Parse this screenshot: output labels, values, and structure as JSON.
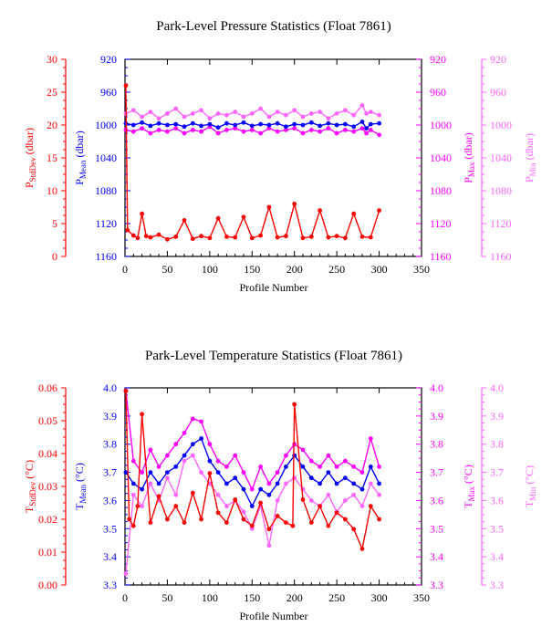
{
  "colors": {
    "stddev": "#ff0000",
    "mean": "#0000ff",
    "max": "#ff00ff",
    "min": "#ff66ff",
    "axis": "#000000"
  },
  "chart_data": [
    {
      "type": "line",
      "title": "Park-Level Pressure Statistics (Float 7861)",
      "xlabel": "Profile Number",
      "xlim": [
        0,
        350
      ],
      "xticks": [
        "0",
        "50",
        "100",
        "150",
        "200",
        "250",
        "300",
        "350"
      ],
      "axes": {
        "stddev": {
          "label_main": "P",
          "label_sub": "StdDev",
          "label_unit": " (dbar)",
          "lim": [
            0,
            30
          ],
          "ticks": [
            "0",
            "5",
            "10",
            "15",
            "20",
            "25",
            "30"
          ],
          "inverted": false
        },
        "mean": {
          "label_main": "P",
          "label_sub": "Mean",
          "label_unit": " (dbar)",
          "lim": [
            1160,
            920
          ],
          "ticks": [
            "920",
            "960",
            "1000",
            "1040",
            "1080",
            "1120",
            "1160"
          ],
          "inverted": true
        },
        "max": {
          "label_main": "P",
          "label_sub": "Max",
          "label_unit": " (dbar)",
          "lim": [
            1160,
            920
          ],
          "ticks": [
            "920",
            "960",
            "1000",
            "1040",
            "1080",
            "1120",
            "1160"
          ],
          "inverted": true
        },
        "min": {
          "label_main": "P",
          "label_sub": "Min",
          "label_unit": " (dbar)",
          "lim": [
            1160,
            920
          ],
          "ticks": [
            "920",
            "960",
            "1000",
            "1040",
            "1080",
            "1120",
            "1160"
          ],
          "inverted": true
        }
      },
      "series": [
        {
          "key": "min",
          "x": [
            1,
            10,
            20,
            30,
            40,
            50,
            60,
            70,
            80,
            90,
            100,
            110,
            120,
            130,
            140,
            150,
            160,
            170,
            180,
            190,
            200,
            210,
            220,
            230,
            240,
            250,
            260,
            270,
            280,
            285,
            290,
            300
          ],
          "values": [
            986,
            982,
            990,
            984,
            992,
            986,
            980,
            990,
            986,
            982,
            992,
            986,
            988,
            984,
            990,
            986,
            980,
            990,
            984,
            988,
            982,
            990,
            986,
            984,
            992,
            986,
            982,
            988,
            976,
            986,
            984,
            988
          ]
        },
        {
          "key": "max",
          "x": [
            1,
            10,
            20,
            30,
            40,
            50,
            60,
            70,
            80,
            90,
            100,
            110,
            120,
            130,
            140,
            150,
            160,
            170,
            180,
            190,
            200,
            210,
            220,
            230,
            240,
            250,
            260,
            270,
            280,
            285,
            290,
            300
          ],
          "values": [
            1006,
            1008,
            1004,
            1010,
            1006,
            1008,
            1004,
            1010,
            1006,
            1008,
            1002,
            1010,
            1006,
            1004,
            1008,
            1006,
            1010,
            1004,
            1008,
            1006,
            1004,
            1010,
            1006,
            1008,
            1004,
            1010,
            1006,
            1008,
            1004,
            1010,
            1006,
            1012
          ]
        },
        {
          "key": "mean",
          "x": [
            1,
            10,
            20,
            30,
            40,
            50,
            60,
            70,
            80,
            90,
            100,
            110,
            120,
            130,
            140,
            150,
            160,
            170,
            180,
            190,
            200,
            210,
            220,
            230,
            240,
            250,
            260,
            270,
            280,
            285,
            290,
            300
          ],
          "values": [
            998,
            1000,
            997,
            1001,
            998,
            1000,
            999,
            1002,
            998,
            1001,
            999,
            1003,
            998,
            1000,
            997,
            1001,
            999,
            1000,
            998,
            1002,
            999,
            1000,
            997,
            1001,
            998,
            1000,
            999,
            1002,
            996,
            1004,
            999,
            998
          ]
        },
        {
          "key": "stddev",
          "x": [
            1,
            3,
            10,
            15,
            20,
            25,
            30,
            40,
            50,
            60,
            70,
            80,
            90,
            100,
            110,
            120,
            130,
            140,
            150,
            160,
            170,
            180,
            190,
            200,
            210,
            220,
            230,
            240,
            250,
            260,
            270,
            280,
            290,
            300
          ],
          "values": [
            26,
            4,
            3.2,
            2.8,
            6.5,
            3.1,
            2.9,
            3.3,
            2.6,
            3.0,
            5.5,
            2.7,
            3.1,
            2.8,
            5.8,
            3.0,
            2.9,
            6.0,
            2.8,
            3.2,
            7.5,
            2.9,
            3.1,
            8.0,
            2.8,
            3.0,
            7.0,
            2.9,
            3.1,
            2.8,
            6.5,
            3.0,
            2.9,
            7.0
          ]
        }
      ]
    },
    {
      "type": "line",
      "title": "Park-Level Temperature Statistics (Float 7861)",
      "xlabel": "Profile Number",
      "xlim": [
        0,
        350
      ],
      "xticks": [
        "0",
        "50",
        "100",
        "150",
        "200",
        "250",
        "300",
        "350"
      ],
      "axes": {
        "stddev": {
          "label_main": "T",
          "label_sub": "StdDev",
          "label_unit": " (°C)",
          "lim": [
            0.0,
            0.06
          ],
          "ticks": [
            "0.00",
            "0.01",
            "0.02",
            "0.03",
            "0.04",
            "0.05",
            "0.06"
          ],
          "inverted": false
        },
        "mean": {
          "label_main": "T",
          "label_sub": "Mean",
          "label_unit": " (°C)",
          "lim": [
            3.3,
            4.0
          ],
          "ticks": [
            "3.3",
            "3.4",
            "3.5",
            "3.6",
            "3.7",
            "3.8",
            "3.9",
            "4.0"
          ],
          "inverted": false
        },
        "max": {
          "label_main": "T",
          "label_sub": "Max",
          "label_unit": " (°C)",
          "lim": [
            3.3,
            4.0
          ],
          "ticks": [
            "3.3",
            "3.4",
            "3.5",
            "3.6",
            "3.7",
            "3.8",
            "3.9",
            "4.0"
          ],
          "inverted": false
        },
        "min": {
          "label_main": "T",
          "label_sub": "Min",
          "label_unit": " (°C)",
          "lim": [
            3.3,
            4.0
          ],
          "ticks": [
            "3.3",
            "3.4",
            "3.5",
            "3.6",
            "3.7",
            "3.8",
            "3.9",
            "4.0"
          ],
          "inverted": false
        }
      },
      "series": [
        {
          "key": "min",
          "x": [
            1,
            10,
            20,
            30,
            40,
            50,
            60,
            70,
            80,
            90,
            100,
            110,
            120,
            130,
            140,
            150,
            160,
            170,
            180,
            190,
            200,
            210,
            220,
            230,
            240,
            250,
            260,
            270,
            280,
            290,
            300
          ],
          "values": [
            3.34,
            3.62,
            3.58,
            3.66,
            3.6,
            3.68,
            3.62,
            3.74,
            3.76,
            3.7,
            3.66,
            3.62,
            3.58,
            3.6,
            3.56,
            3.5,
            3.58,
            3.44,
            3.6,
            3.66,
            3.68,
            3.64,
            3.6,
            3.58,
            3.62,
            3.56,
            3.6,
            3.62,
            3.58,
            3.66,
            3.62
          ]
        },
        {
          "key": "max",
          "x": [
            1,
            10,
            20,
            30,
            40,
            50,
            60,
            70,
            80,
            90,
            100,
            110,
            120,
            130,
            140,
            150,
            160,
            170,
            180,
            190,
            200,
            210,
            220,
            230,
            240,
            250,
            260,
            270,
            280,
            290,
            300
          ],
          "values": [
            3.99,
            3.74,
            3.7,
            3.78,
            3.72,
            3.76,
            3.8,
            3.84,
            3.89,
            3.88,
            3.8,
            3.74,
            3.72,
            3.76,
            3.7,
            3.64,
            3.72,
            3.66,
            3.7,
            3.76,
            3.8,
            3.78,
            3.74,
            3.72,
            3.76,
            3.72,
            3.74,
            3.72,
            3.7,
            3.82,
            3.72
          ]
        },
        {
          "key": "mean",
          "x": [
            1,
            10,
            20,
            30,
            40,
            50,
            60,
            70,
            80,
            90,
            100,
            110,
            120,
            130,
            140,
            150,
            160,
            170,
            180,
            190,
            200,
            210,
            220,
            230,
            240,
            250,
            260,
            270,
            280,
            290,
            300
          ],
          "values": [
            3.7,
            3.66,
            3.64,
            3.7,
            3.66,
            3.7,
            3.72,
            3.76,
            3.8,
            3.82,
            3.74,
            3.7,
            3.66,
            3.68,
            3.64,
            3.58,
            3.64,
            3.62,
            3.66,
            3.72,
            3.76,
            3.72,
            3.68,
            3.66,
            3.7,
            3.66,
            3.68,
            3.66,
            3.64,
            3.72,
            3.66
          ]
        },
        {
          "key": "stddev",
          "x": [
            1,
            5,
            10,
            15,
            20,
            30,
            40,
            50,
            60,
            70,
            80,
            90,
            100,
            110,
            120,
            130,
            140,
            150,
            160,
            170,
            180,
            190,
            198,
            200,
            210,
            220,
            230,
            240,
            250,
            260,
            270,
            280,
            290,
            300
          ],
          "values": [
            0.059,
            0.02,
            0.018,
            0.024,
            0.052,
            0.019,
            0.027,
            0.02,
            0.024,
            0.019,
            0.028,
            0.02,
            0.034,
            0.022,
            0.019,
            0.026,
            0.02,
            0.018,
            0.025,
            0.017,
            0.021,
            0.019,
            0.018,
            0.055,
            0.026,
            0.019,
            0.024,
            0.018,
            0.022,
            0.02,
            0.017,
            0.011,
            0.024,
            0.02
          ]
        }
      ]
    }
  ]
}
